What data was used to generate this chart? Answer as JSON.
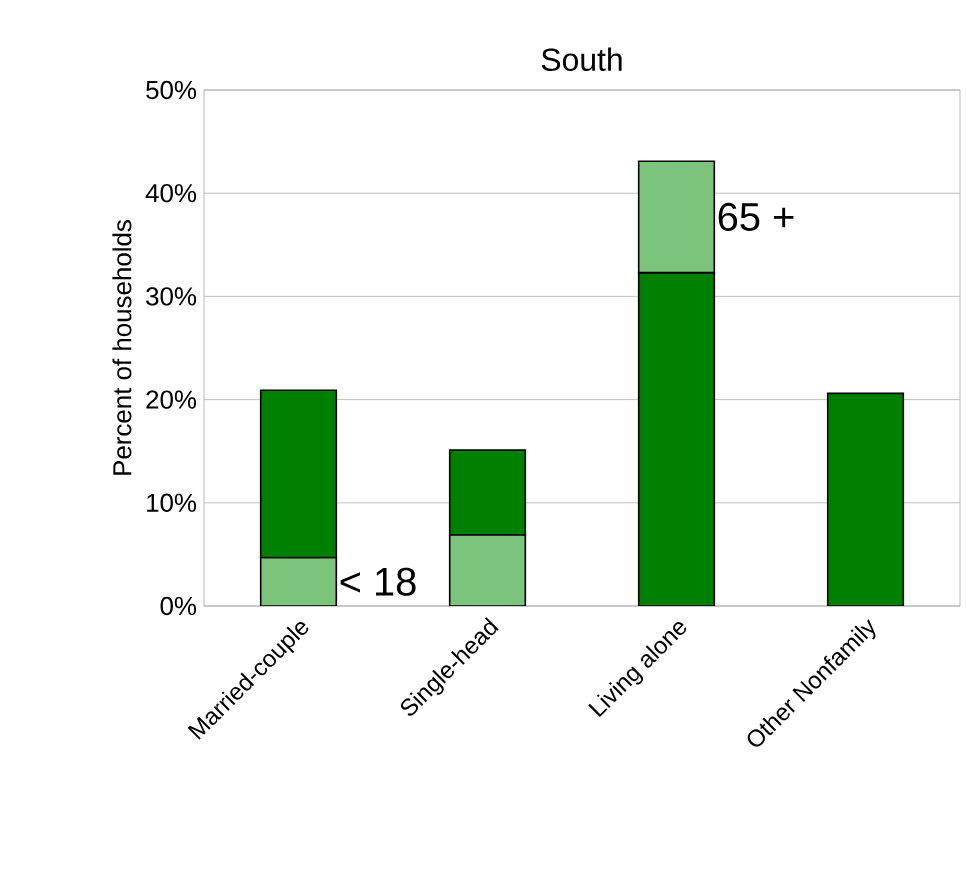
{
  "chart_data": {
    "type": "bar",
    "title": "South",
    "ylabel": "Percent of households",
    "stacked": true,
    "categories": [
      "Married-couple",
      "Single-head",
      "Living alone",
      "Other Nonfamily"
    ],
    "series": [
      {
        "name": "< 18",
        "color": "#7cc47c",
        "values": [
          4.7,
          6.9,
          null,
          null
        ]
      },
      {
        "color": "#008000",
        "values": [
          16.2,
          8.2,
          32.3,
          20.6
        ]
      },
      {
        "name": "65 +",
        "color": "#7cc47c",
        "values": [
          null,
          null,
          10.8,
          null
        ]
      }
    ],
    "ylim": [
      0,
      50
    ],
    "yticks": [
      {
        "value": 0,
        "label": "0%"
      },
      {
        "value": 10,
        "label": "10%"
      },
      {
        "value": 20,
        "label": "20%"
      },
      {
        "value": 30,
        "label": "30%"
      },
      {
        "value": 40,
        "label": "40%"
      },
      {
        "value": 50,
        "label": "50%"
      }
    ],
    "grid": "y"
  }
}
